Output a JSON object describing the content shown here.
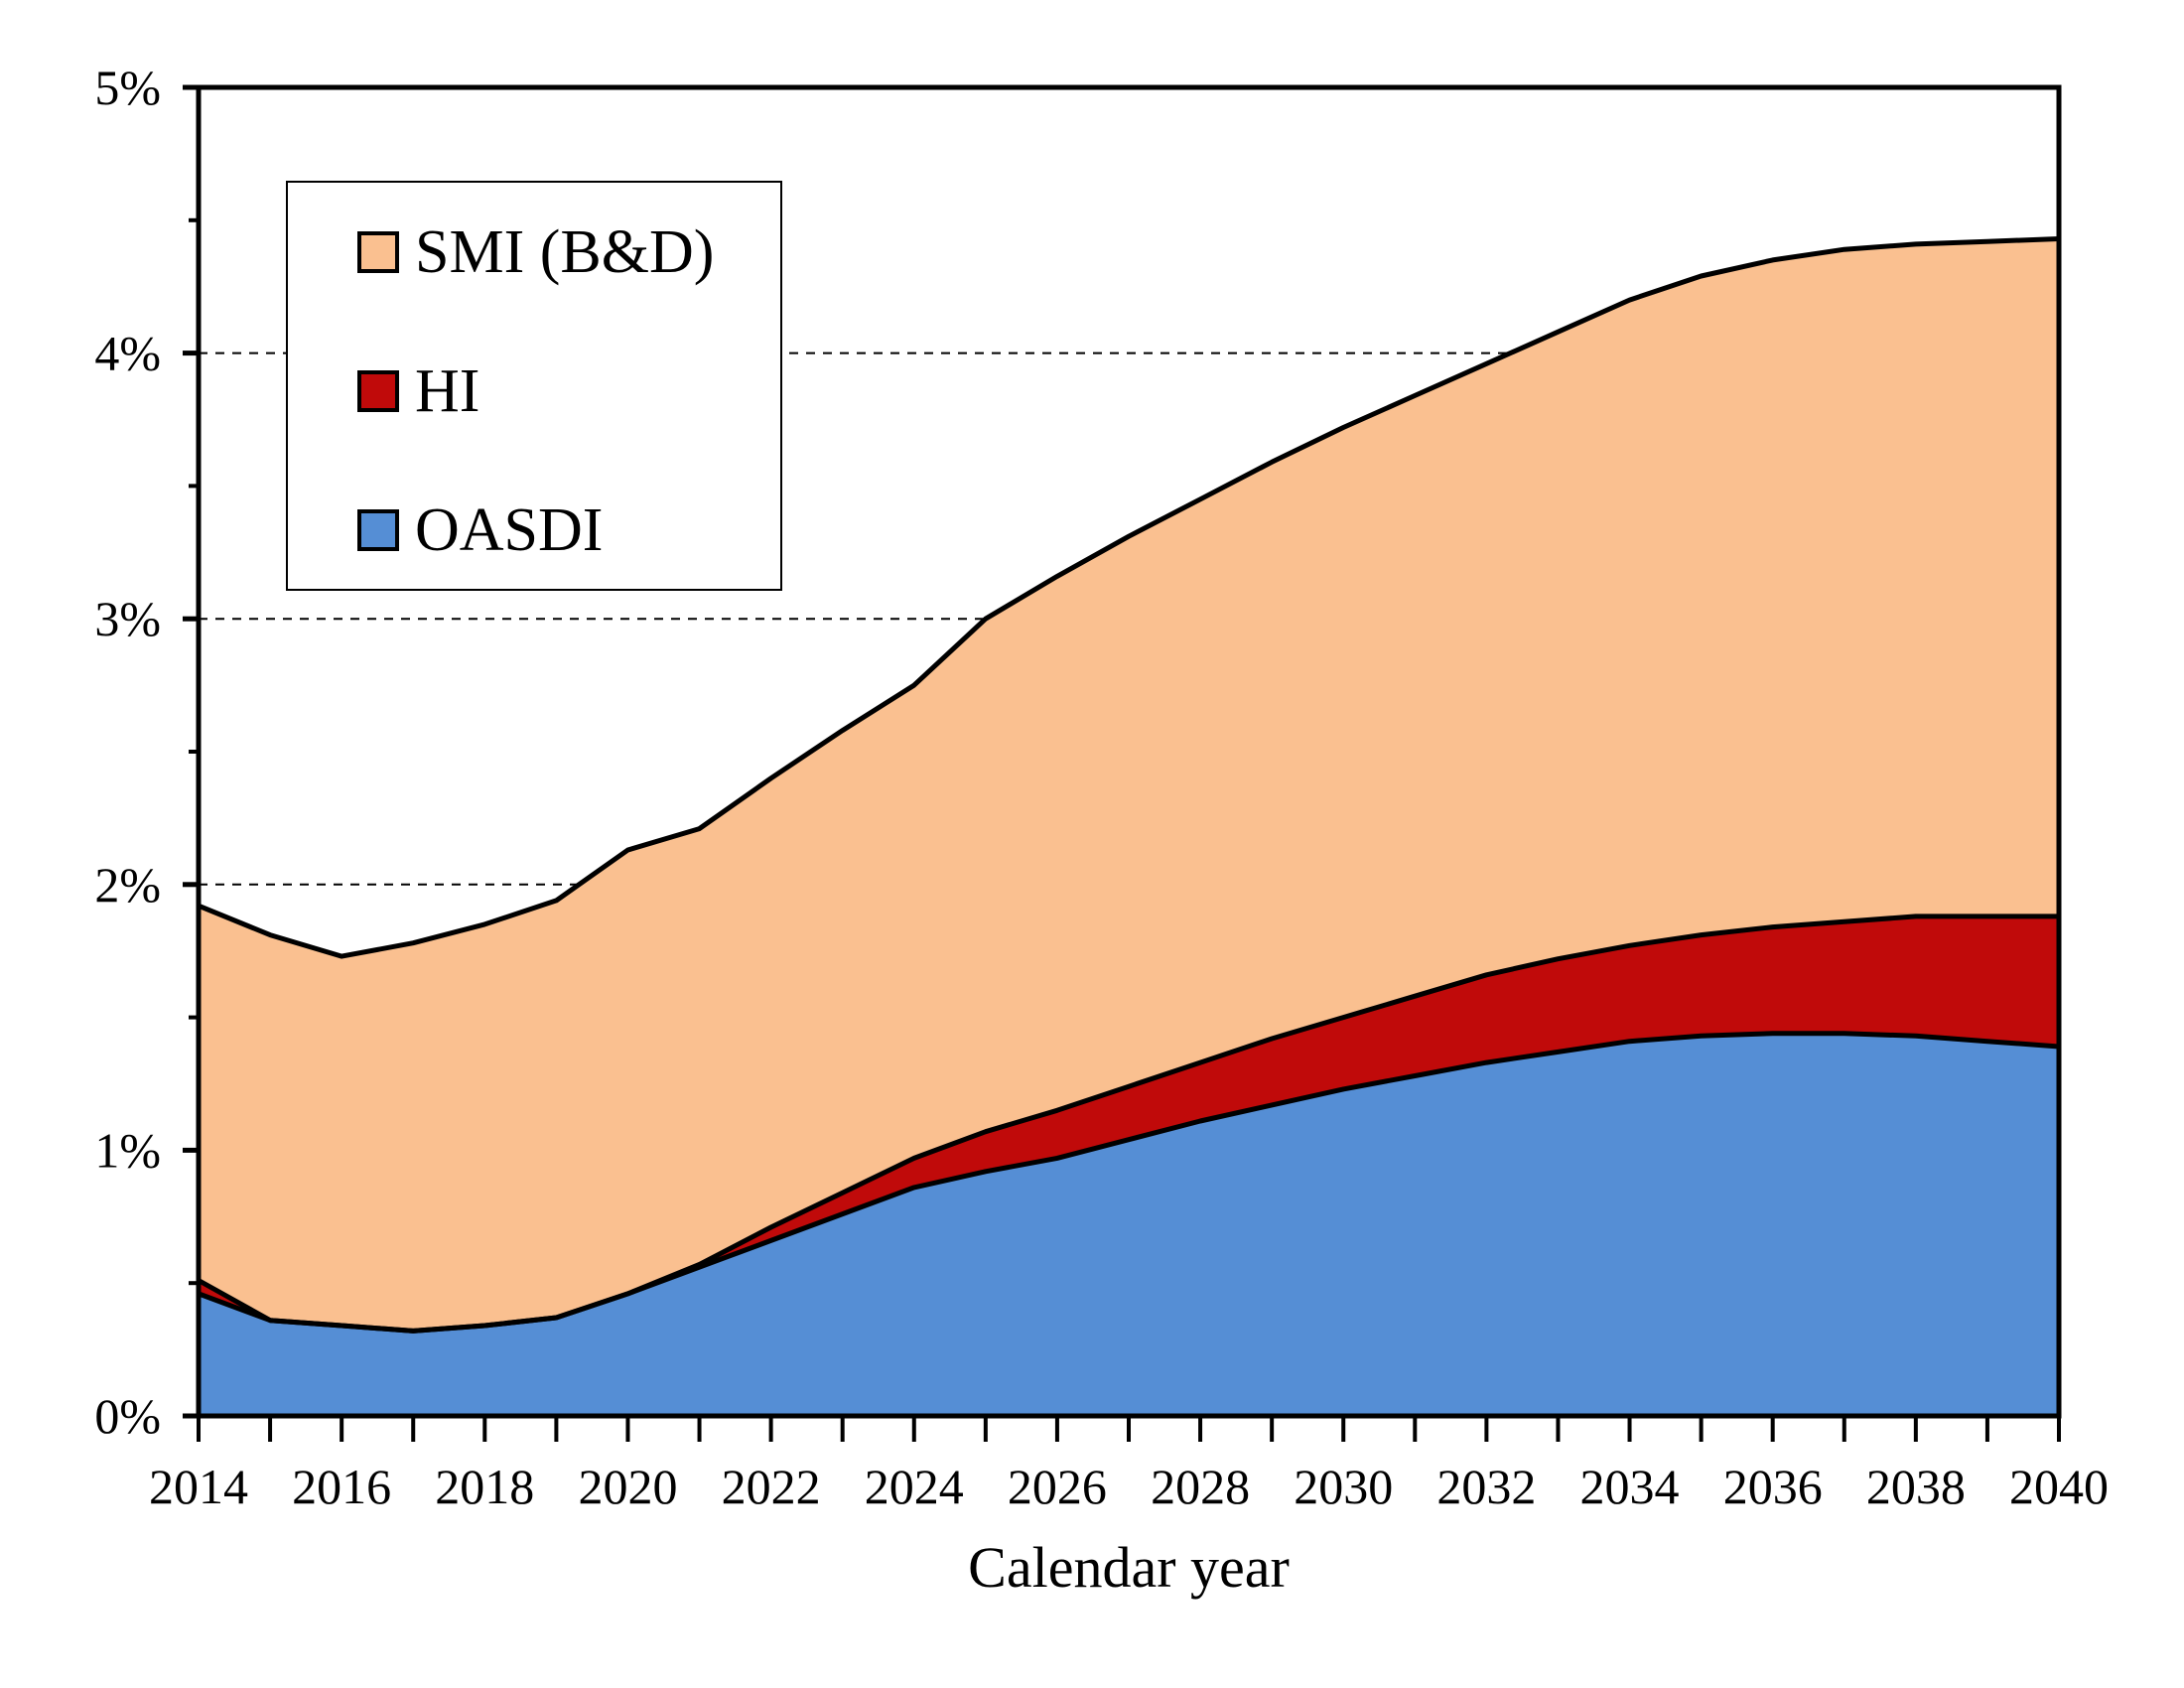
{
  "chart_data": {
    "type": "area",
    "stacked": true,
    "title": "",
    "xlabel": "Calendar year",
    "ylabel": "",
    "ylim": [
      0,
      5
    ],
    "grid": "dashed horizontal at 2%, 3%, 4%",
    "gridline_values": [
      2,
      3,
      4
    ],
    "legend_position": "top-left inside plot",
    "years": [
      2014,
      2015,
      2016,
      2017,
      2018,
      2019,
      2020,
      2021,
      2022,
      2023,
      2024,
      2025,
      2026,
      2027,
      2028,
      2029,
      2030,
      2031,
      2032,
      2033,
      2034,
      2035,
      2036,
      2037,
      2038,
      2039,
      2040
    ],
    "series": [
      {
        "name": "OASDI",
        "color": "#558ED5",
        "values": [
          0.46,
          0.36,
          0.34,
          0.32,
          0.34,
          0.37,
          0.46,
          0.56,
          0.66,
          0.76,
          0.86,
          0.92,
          0.97,
          1.04,
          1.11,
          1.17,
          1.23,
          1.28,
          1.33,
          1.37,
          1.41,
          1.43,
          1.44,
          1.44,
          1.43,
          1.41,
          1.39
        ]
      },
      {
        "name": "HI",
        "color": "#C00A0A",
        "values": [
          0.05,
          0.0,
          0.0,
          0.0,
          0.0,
          0.0,
          0.0,
          0.01,
          0.05,
          0.08,
          0.11,
          0.15,
          0.18,
          0.2,
          0.22,
          0.25,
          0.27,
          0.3,
          0.33,
          0.35,
          0.36,
          0.38,
          0.4,
          0.42,
          0.45,
          0.47,
          0.49
        ]
      },
      {
        "name": "SMI (B&D)",
        "color": "#FAC090",
        "values": [
          1.41,
          1.45,
          1.39,
          1.46,
          1.51,
          1.57,
          1.67,
          1.64,
          1.69,
          1.74,
          1.78,
          1.93,
          2.01,
          2.07,
          2.12,
          2.17,
          2.22,
          2.26,
          2.3,
          2.36,
          2.43,
          2.48,
          2.51,
          2.53,
          2.53,
          2.54,
          2.55
        ]
      }
    ],
    "stack_totals": [
      1.92,
      1.81,
      1.73,
      1.78,
      1.85,
      1.94,
      2.13,
      2.21,
      2.4,
      2.58,
      2.75,
      3.0,
      3.16,
      3.31,
      3.45,
      3.59,
      3.72,
      3.84,
      3.96,
      4.08,
      4.2,
      4.29,
      4.35,
      4.39,
      4.41,
      4.42,
      4.43
    ],
    "outline_color": "#000000",
    "y_tick_labels_major": [
      "0%",
      "1%",
      "2%",
      "3%",
      "4%",
      "5%"
    ],
    "y_minor_tick_step": 0.5,
    "x_tick_labels": [
      "2014",
      "2016",
      "2018",
      "2020",
      "2022",
      "2024",
      "2026",
      "2028",
      "2030",
      "2032",
      "2034",
      "2036",
      "2038",
      "2040"
    ],
    "x_minor_tick_step_years": 1
  },
  "legend": {
    "items": [
      {
        "label": "SMI (B&D)",
        "color": "#FAC090"
      },
      {
        "label": "HI",
        "color": "#C00A0A"
      },
      {
        "label": "OASDI",
        "color": "#558ED5"
      }
    ]
  },
  "axis": {
    "x_label": "Calendar year"
  }
}
